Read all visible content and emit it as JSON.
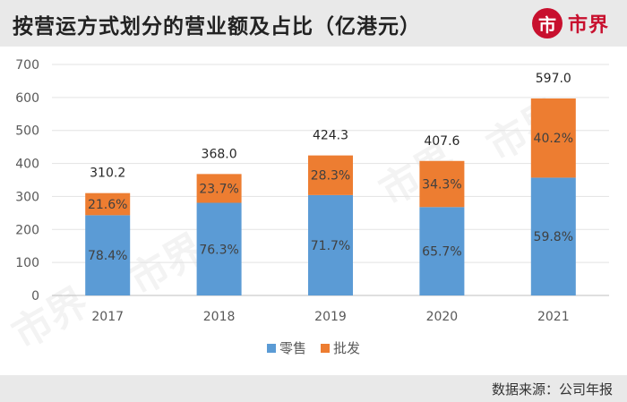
{
  "title": "按营运方式划分的营业额及占比（亿港元）",
  "brand": {
    "logo_icon": "市",
    "name": "市界",
    "color": "#c8102e"
  },
  "source": "数据来源：公司年报",
  "watermarks": [
    "市界",
    "市界",
    "市界",
    "市界"
  ],
  "chart_data": {
    "type": "bar",
    "stacked": true,
    "categories": [
      "2017",
      "2018",
      "2019",
      "2020",
      "2021"
    ],
    "totals": [
      310.2,
      368.0,
      424.3,
      407.6,
      597.0
    ],
    "total_labels": [
      "310.2",
      "368.0",
      "424.3",
      "407.6",
      "597.0"
    ],
    "series": [
      {
        "name": "零售",
        "color": "#5b9bd5",
        "share_labels": [
          "78.4%",
          "76.3%",
          "71.7%",
          "65.7%",
          "59.8%"
        ],
        "share": [
          78.4,
          76.3,
          71.7,
          65.7,
          59.8
        ]
      },
      {
        "name": "批发",
        "color": "#ed7d31",
        "share_labels": [
          "21.6%",
          "23.7%",
          "28.3%",
          "34.3%",
          "40.2%"
        ],
        "share": [
          21.6,
          23.7,
          28.3,
          34.3,
          40.2
        ]
      }
    ],
    "y_ticks": [
      "0",
      "100",
      "200",
      "300",
      "400",
      "500",
      "600",
      "700"
    ],
    "ylim": [
      0,
      700
    ],
    "grid": true,
    "legend_position": "bottom"
  }
}
